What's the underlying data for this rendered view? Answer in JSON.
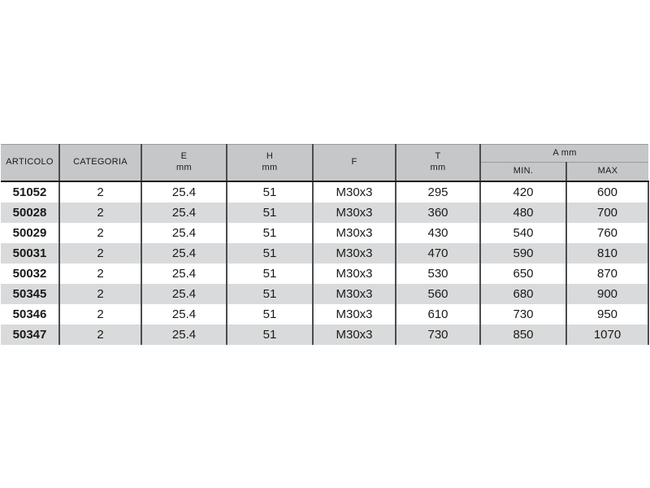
{
  "table": {
    "column_keys": [
      "articolo",
      "categoria",
      "e_mm",
      "h_mm",
      "f",
      "t_mm",
      "a_min",
      "a_max"
    ],
    "header": {
      "articolo": "ARTICOLO",
      "categoria": "CATEGORIA",
      "e_label": "E",
      "e_unit": "mm",
      "h_label": "H",
      "h_unit": "mm",
      "f_label": "F",
      "t_label": "T",
      "t_unit": "mm",
      "a_group_label": "A mm",
      "min_label": "MIN.",
      "max_label": "MAX"
    },
    "rows": [
      [
        "51052",
        "2",
        "25.4",
        "51",
        "M30x3",
        "295",
        "420",
        "600"
      ],
      [
        "50028",
        "2",
        "25.4",
        "51",
        "M30x3",
        "360",
        "480",
        "700"
      ],
      [
        "50029",
        "2",
        "25.4",
        "51",
        "M30x3",
        "430",
        "540",
        "760"
      ],
      [
        "50031",
        "2",
        "25.4",
        "51",
        "M30x3",
        "470",
        "590",
        "810"
      ],
      [
        "50032",
        "2",
        "25.4",
        "51",
        "M30x3",
        "530",
        "650",
        "870"
      ],
      [
        "50345",
        "2",
        "25.4",
        "51",
        "M30x3",
        "560",
        "680",
        "900"
      ],
      [
        "50346",
        "2",
        "25.4",
        "51",
        "M30x3",
        "610",
        "730",
        "950"
      ],
      [
        "50347",
        "2",
        "25.4",
        "51",
        "M30x3",
        "730",
        "850",
        "1070"
      ]
    ]
  },
  "colors": {
    "header_bg": "#c6c7c9",
    "row_bg": "#ffffff",
    "row_alt_bg": "#d9dadb",
    "column_divider": "#4b4c4e",
    "header_underline": "#1c1c1c",
    "text": "#1a1a1a"
  }
}
